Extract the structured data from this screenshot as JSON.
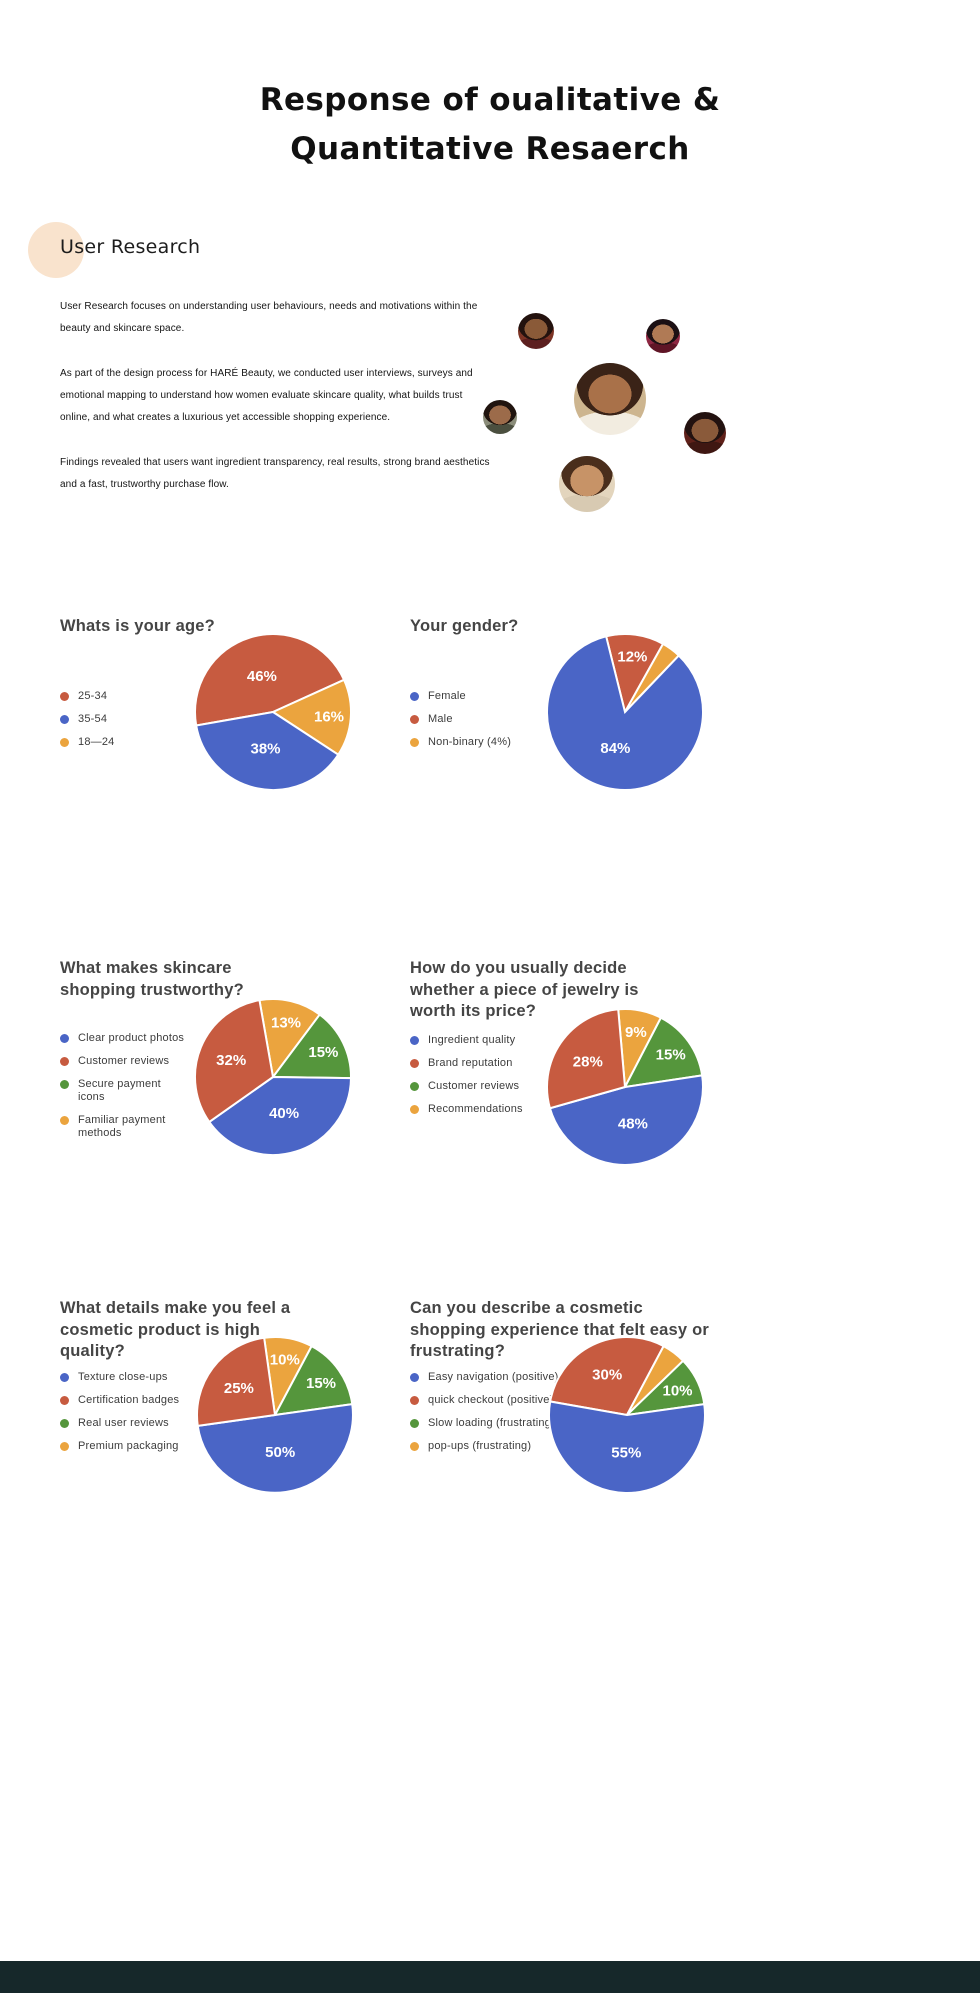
{
  "page": {
    "title_line1": "Response of oualitative &",
    "title_line2": "Quantitative Resaerch",
    "section_heading": "User Research",
    "paragraphs": [
      "User Research focuses on understanding user behaviours, needs and motivations within the beauty and skincare space.",
      "As part of the design process for HARÉ Beauty, we conducted user interviews, surveys and emotional mapping to understand how women evaluate skincare quality, what builds trust online, and what creates a luxurious yet accessible shopping experience.",
      "Findings revealed that users want ingredient transparency, real results, strong brand aesthetics and a fast, trustworthy purchase flow."
    ]
  },
  "colors": {
    "blue": "#4a65c6",
    "red": "#c75b40",
    "orange": "#eba43e",
    "green": "#55963c",
    "accent_circle": "#f9e3cd",
    "footer_bar": "#16282a"
  },
  "avatars": [
    "participant-1",
    "participant-2",
    "participant-3",
    "participant-4",
    "participant-5",
    "participant-6"
  ],
  "chart_data": [
    {
      "type": "pie",
      "title": "Whats is your age?",
      "legend": [
        {
          "label": "25-34",
          "color": "red"
        },
        {
          "label": "35-54",
          "color": "blue"
        },
        {
          "label": "18—24",
          "color": "orange"
        }
      ],
      "start_angle": -100,
      "slices": [
        {
          "segment": "25-34",
          "value": 46,
          "color": "red",
          "display": "46%"
        },
        {
          "segment": "18—24",
          "value": 16,
          "color": "orange",
          "display": "16%"
        },
        {
          "segment": "35-54",
          "value": 38,
          "color": "blue",
          "display": "38%"
        }
      ]
    },
    {
      "type": "pie",
      "title": "Your gender?",
      "legend": [
        {
          "label": "Female",
          "color": "blue"
        },
        {
          "label": "Male",
          "color": "red"
        },
        {
          "label": "Non-binary (4%)",
          "color": "orange"
        }
      ],
      "start_angle": -14,
      "slices": [
        {
          "segment": "Male",
          "value": 12,
          "color": "red",
          "display": "12%"
        },
        {
          "segment": "Non-binary",
          "value": 4,
          "color": "orange",
          "display": ""
        },
        {
          "segment": "Female",
          "value": 84,
          "color": "blue",
          "display": "84%"
        }
      ]
    },
    {
      "type": "pie",
      "title": "What makes skincare shopping trustworthy?",
      "legend": [
        {
          "label": "Clear product photos",
          "color": "blue"
        },
        {
          "label": "Customer reviews",
          "color": "red"
        },
        {
          "label": "Secure payment icons",
          "color": "green"
        },
        {
          "label": "Familiar payment methods",
          "color": "orange"
        }
      ],
      "start_angle": -10,
      "slices": [
        {
          "segment": "Familiar payment methods",
          "value": 13,
          "color": "orange",
          "display": "13%"
        },
        {
          "segment": "Secure payment icons",
          "value": 15,
          "color": "green",
          "display": "15%"
        },
        {
          "segment": "Clear product photos",
          "value": 40,
          "color": "blue",
          "display": "40%"
        },
        {
          "segment": "Customer reviews",
          "value": 32,
          "color": "red",
          "display": "32%"
        }
      ]
    },
    {
      "type": "pie",
      "title": "How do you usually decide whether a piece of jewelry is worth its price?",
      "legend": [
        {
          "label": "Ingredient quality",
          "color": "blue"
        },
        {
          "label": "Brand reputation",
          "color": "red"
        },
        {
          "label": "Customer reviews",
          "color": "green"
        },
        {
          "label": "Recommendations",
          "color": "orange"
        }
      ],
      "start_angle": -5,
      "slices": [
        {
          "segment": "Recommendations",
          "value": 9,
          "color": "orange",
          "display": "9%"
        },
        {
          "segment": "Customer reviews",
          "value": 15,
          "color": "green",
          "display": "15%"
        },
        {
          "segment": "Ingredient quality",
          "value": 48,
          "color": "blue",
          "display": "48%"
        },
        {
          "segment": "Brand reputation",
          "value": 28,
          "color": "red",
          "display": "28%"
        }
      ]
    },
    {
      "type": "pie",
      "title": "What details make you feel a cosmetic product is high quality?",
      "legend": [
        {
          "label": "Texture close-ups",
          "color": "blue"
        },
        {
          "label": "Certification badges",
          "color": "red"
        },
        {
          "label": "Real user reviews",
          "color": "green"
        },
        {
          "label": "Premium packaging",
          "color": "orange"
        }
      ],
      "start_angle": -8,
      "slices": [
        {
          "segment": "Premium packaging",
          "value": 10,
          "color": "orange",
          "display": "10%"
        },
        {
          "segment": "Real user reviews",
          "value": 15,
          "color": "green",
          "display": "15%"
        },
        {
          "segment": "Texture close-ups",
          "value": 50,
          "color": "blue",
          "display": "50%"
        },
        {
          "segment": "Certification badges",
          "value": 25,
          "color": "red",
          "display": "25%"
        }
      ]
    },
    {
      "type": "pie",
      "title": "Can you describe a cosmetic shopping experience that felt easy or frustrating?",
      "legend": [
        {
          "label": "Easy navigation (positive)",
          "color": "blue"
        },
        {
          "label": "quick checkout (positive)",
          "color": "red"
        },
        {
          "label": "Slow loading (frustrating)",
          "color": "green"
        },
        {
          "label": "pop-ups (frustrating)",
          "color": "orange"
        }
      ],
      "start_angle": -80,
      "slices": [
        {
          "segment": "quick checkout (positive)",
          "value": 30,
          "color": "red",
          "display": "30%"
        },
        {
          "segment": "pop-ups (frustrating)",
          "value": 5,
          "color": "orange",
          "display": ""
        },
        {
          "segment": "Slow loading (frustrating)",
          "value": 10,
          "color": "green",
          "display": "10%"
        },
        {
          "segment": "Easy navigation (positive)",
          "value": 55,
          "color": "blue",
          "display": "55%"
        }
      ]
    }
  ]
}
